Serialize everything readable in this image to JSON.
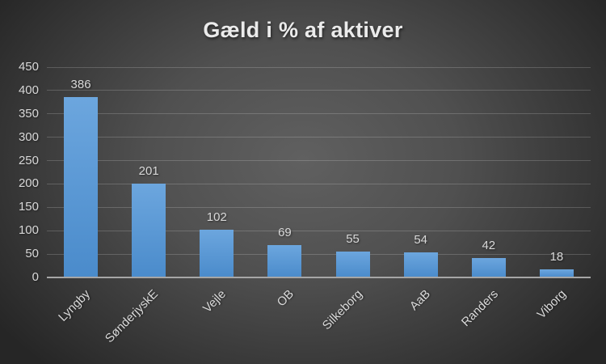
{
  "chart_data": {
    "type": "bar",
    "title": "Gæld i % af aktiver",
    "categories": [
      "Lyngby",
      "SønderjyskE",
      "Vejle",
      "OB",
      "Silkeborg",
      "AaB",
      "Randers",
      "Viborg"
    ],
    "values": [
      386,
      201,
      102,
      69,
      55,
      54,
      42,
      18
    ],
    "xlabel": "",
    "ylabel": "",
    "ylim": [
      0,
      450
    ],
    "ytick_step": 50,
    "grid": true,
    "legend_position": "none",
    "data_labels_shown": true,
    "colors": {
      "bar_top": "#6ca6de",
      "bar_bottom": "#4a8bcb",
      "background_center": "#5f5f5f",
      "background_edge": "#262626",
      "gridline": "#757575",
      "axis_line": "#a6a6a6",
      "tick_label_text": "#d9d9d9",
      "data_label_text": "#d9d9d9",
      "title_text": "#ebebeb"
    }
  }
}
